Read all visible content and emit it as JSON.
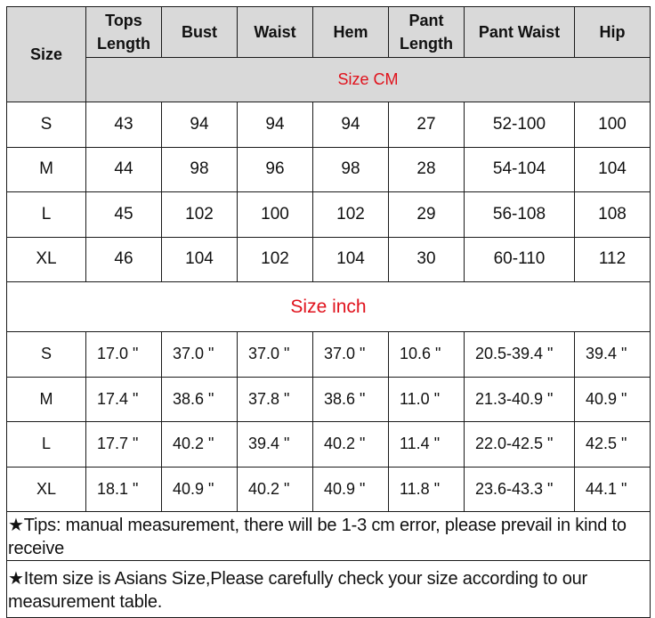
{
  "headers": [
    "Size",
    "Tops\nLength",
    "Bust",
    "Waist",
    "Hem",
    "Pant\nLength",
    "Pant Waist",
    "Hip"
  ],
  "header_lines": {
    "size": "Size",
    "tops_1": "Tops",
    "tops_2": "Length",
    "bust": "Bust",
    "waist": "Waist",
    "hem": "Hem",
    "pant_1": "Pant",
    "pant_2": "Length",
    "pant_waist": "Pant Waist",
    "hip": "Hip"
  },
  "cm_label": "Size CM",
  "cm_rows": [
    [
      "S",
      "43",
      "94",
      "94",
      "94",
      "27",
      "52-100",
      "100"
    ],
    [
      "M",
      "44",
      "98",
      "96",
      "98",
      "28",
      "54-104",
      "104"
    ],
    [
      "L",
      "45",
      "102",
      "100",
      "102",
      "29",
      "56-108",
      "108"
    ],
    [
      "XL",
      "46",
      "104",
      "102",
      "104",
      "30",
      "60-110",
      "112"
    ]
  ],
  "inch_label": "Size inch",
  "inch_rows": [
    [
      "S",
      "17.0 \"",
      "37.0 \"",
      "37.0 \"",
      "37.0 \"",
      "10.6 \"",
      "20.5-39.4 \"",
      "39.4 \""
    ],
    [
      "M",
      "17.4 \"",
      "38.6 \"",
      "37.8 \"",
      "38.6 \"",
      "11.0 \"",
      "21.3-40.9 \"",
      "40.9 \""
    ],
    [
      "L",
      "17.7 \"",
      "40.2 \"",
      "39.4 \"",
      "40.2 \"",
      "11.4 \"",
      "22.0-42.5 \"",
      "42.5 \""
    ],
    [
      "XL",
      "18.1 \"",
      "40.9 \"",
      "40.2 \"",
      "40.9 \"",
      "11.8 \"",
      "23.6-43.3 \"",
      "44.1 \""
    ]
  ],
  "notes": [
    "★Tips: manual measurement, there will be 1-3 cm error, please prevail in kind to receive",
    "★Item size is Asians Size,Please carefully check your size according to our measurement table."
  ],
  "colors": {
    "header_bg": "#d9d9d9",
    "label_red": "#e0121c",
    "border": "#1a1a1a"
  }
}
